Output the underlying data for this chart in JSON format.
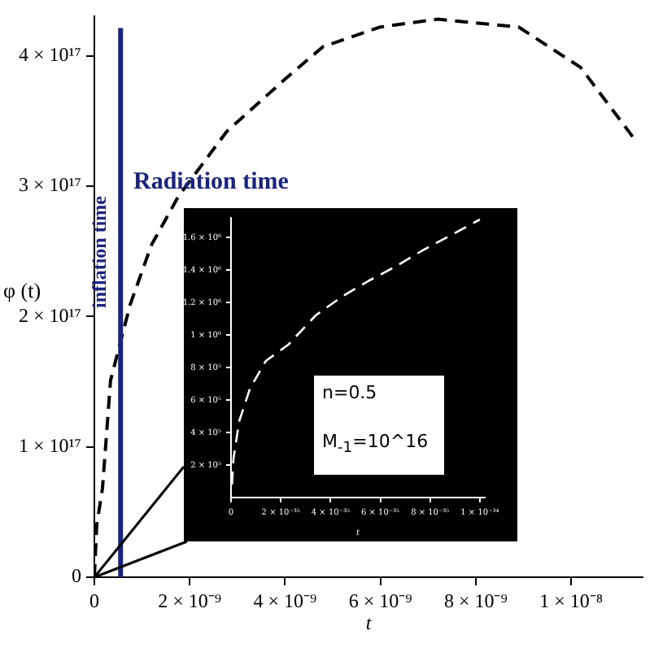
{
  "chart_data": [
    {
      "type": "line",
      "xlabel": "t",
      "ylabel": "φ (t)",
      "xlim": [
        0,
        1.15e-08
      ],
      "ylim": [
        0,
        4.3e+17
      ],
      "xticks": [
        {
          "value": 0,
          "label": "0"
        },
        {
          "value": 2e-09,
          "label": "2 × 10⁻⁹"
        },
        {
          "value": 4e-09,
          "label": "4 × 10⁻⁹"
        },
        {
          "value": 6e-09,
          "label": "6 × 10⁻⁹"
        },
        {
          "value": 8e-09,
          "label": "8 × 10⁻⁹"
        },
        {
          "value": 1e-08,
          "label": "1 × 10⁻⁸"
        }
      ],
      "yticks": [
        {
          "value": 0,
          "label": "0"
        },
        {
          "value": 1e+17,
          "label": "1 × 10¹⁷"
        },
        {
          "value": 2e+17,
          "label": "2 × 10¹⁷"
        },
        {
          "value": 3e+17,
          "label": "3 × 10¹⁷"
        },
        {
          "value": 4e+17,
          "label": "4 × 10¹⁷"
        }
      ],
      "grid": false,
      "legend": false,
      "marker": "none",
      "line_style": "dashed",
      "series": [
        {
          "color": "#000000",
          "x": [
            0,
            5e-11,
            1.7e-10,
            3.4e-10,
            7.5e-10,
            1.2e-09,
            1.76e-09,
            2.78e-09,
            4.03e-09,
            4.8e-09,
            6e-09,
            7.2e-09,
            8.9e-09,
            1.02e-08,
            1.135e-08
          ],
          "values": [
            0,
            4e+16,
            6.8e+16,
            1.51e+17,
            2.09e+17,
            2.55e+17,
            2.92e+17,
            3.42e+17,
            3.83e+17,
            4.07e+17,
            4.22e+17,
            4.28e+17,
            4.22e+17,
            3.91e+17,
            3.35e+17
          ]
        }
      ],
      "ref_lines": [
        {
          "axis": "x",
          "value": 5.5e-10,
          "label": "inflation time",
          "color": "#1a237e",
          "line_style": "solid"
        }
      ],
      "annotations": [
        "Radiation time"
      ]
    },
    {
      "type": "line",
      "xlabel": "t",
      "xlim": [
        0,
        1.02e-34
      ],
      "ylim": [
        0,
        1720000.0
      ],
      "xticks": [
        {
          "value": 0,
          "label": "0"
        },
        {
          "value": 2e-35,
          "label": "2 × 10⁻³⁵"
        },
        {
          "value": 4e-35,
          "label": "4 × 10⁻³⁵"
        },
        {
          "value": 6e-35,
          "label": "6 × 10⁻³⁵"
        },
        {
          "value": 8e-35,
          "label": "8 × 10⁻³⁵"
        },
        {
          "value": 1e-34,
          "label": "1 × 10⁻³⁴"
        }
      ],
      "yticks": [
        {
          "value": 200000.0,
          "label": "2 × 10⁵"
        },
        {
          "value": 400000.0,
          "label": "4 × 10⁵"
        },
        {
          "value": 600000.0,
          "label": "6 × 10⁵"
        },
        {
          "value": 800000.0,
          "label": "8 × 10⁵"
        },
        {
          "value": 1000000.0,
          "label": "1 × 10⁶"
        },
        {
          "value": 1200000.0,
          "label": "1.2 × 10⁶"
        },
        {
          "value": 1400000.0,
          "label": "1.4 × 10⁶"
        },
        {
          "value": 1600000.0,
          "label": "1.6 × 10⁶"
        }
      ],
      "grid": false,
      "legend": false,
      "marker": "none",
      "line_style": "dashed",
      "series": [
        {
          "color": "#ffffff",
          "x": [
            4e-37,
            1e-36,
            3.3e-36,
            7.6e-36,
            1.4e-35,
            2.3e-35,
            3.4e-35,
            4.5e-35,
            5.5e-35,
            6.6e-35,
            7.7e-35,
            8.8e-35,
            1e-34
          ],
          "values": [
            80000.0,
            240000.0,
            470000.0,
            670000.0,
            840000.0,
            940000.0,
            1120000.0,
            1240000.0,
            1330000.0,
            1420000.0,
            1520000.0,
            1610000.0,
            1710000.0
          ]
        }
      ],
      "annotations": [
        "n=0.5",
        "M$_{-1}$=10^16"
      ]
    }
  ]
}
